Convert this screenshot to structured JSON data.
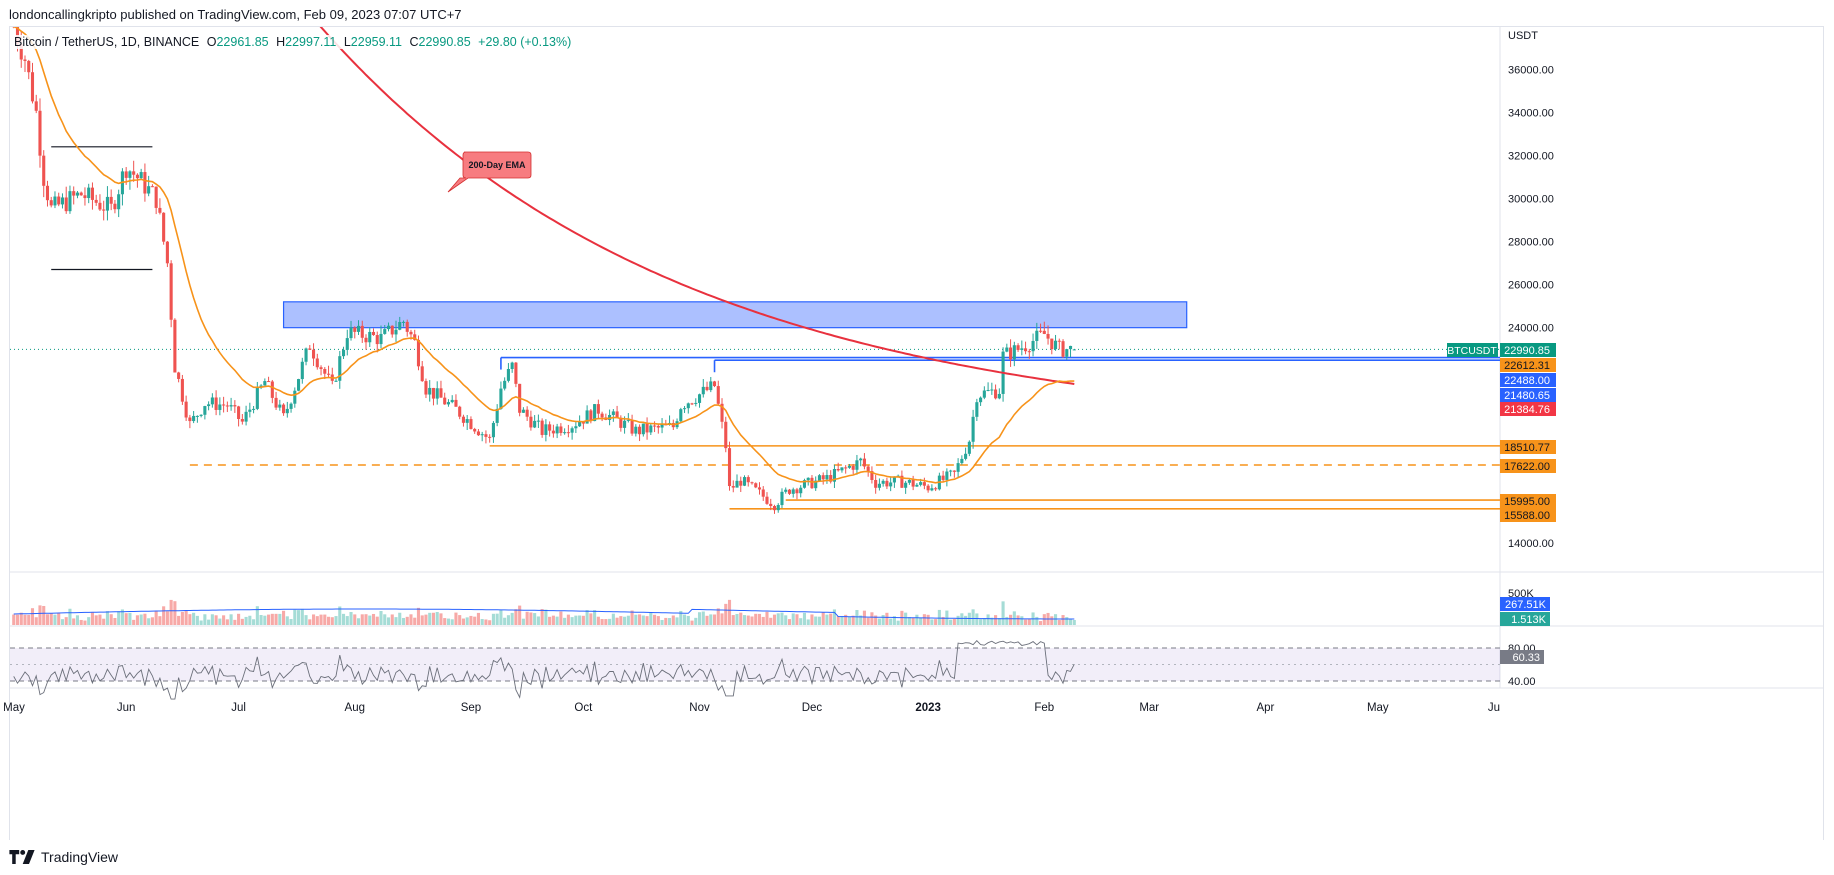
{
  "header": {
    "publisher": "londoncallingkripto published on TradingView.com, Feb 09, 2023 07:07 UTC+7"
  },
  "legend": {
    "symbol": "Bitcoin / TetherUS, 1D, BINANCE",
    "open_label": "O",
    "open": "22961.85",
    "high_label": "H",
    "high": "22997.11",
    "low_label": "L",
    "low": "22959.11",
    "close_label": "C",
    "close": "22990.85",
    "change": "+29.80 (+0.13%)"
  },
  "price_axis": {
    "currency": "USDT",
    "ticks": [
      "36000.00",
      "34000.00",
      "32000.00",
      "30000.00",
      "28000.00",
      "26000.00",
      "24000.00",
      "14000.00"
    ]
  },
  "time_axis": [
    "May",
    "Jun",
    "Jul",
    "Aug",
    "Sep",
    "Oct",
    "Nov",
    "Dec",
    "2023",
    "Feb",
    "Mar",
    "Apr",
    "May",
    "Ju"
  ],
  "price_labels": [
    {
      "text": "BTCUSDT",
      "color": "#089981"
    },
    {
      "text": "22990.85",
      "color": "#089981"
    },
    {
      "text": "22612.31",
      "color": "#f7931a"
    },
    {
      "text": "22488.00",
      "color": "#2962ff"
    },
    {
      "text": "21480.65",
      "color": "#2962ff"
    },
    {
      "text": "21384.76",
      "color": "#f23645"
    },
    {
      "text": "18510.77",
      "color": "#f7931a"
    },
    {
      "text": "17622.00",
      "color": "#f7931a"
    },
    {
      "text": "15995.00",
      "color": "#f7931a"
    },
    {
      "text": "15588.00",
      "color": "#f7931a"
    }
  ],
  "annotation": {
    "text": "200-Day EMA",
    "color": "#f77c80"
  },
  "volume_axis": {
    "tick": "500K",
    "labels": [
      {
        "text": "267.51K",
        "color": "#2962ff"
      },
      {
        "text": "1.513K",
        "color": "#26a69a"
      }
    ]
  },
  "rsi_axis": {
    "ticks": [
      "80.00",
      "40.00"
    ],
    "label": {
      "text": "60.33",
      "color": "#787b86"
    }
  },
  "footer": {
    "brand": "TradingView"
  },
  "colors": {
    "up": "#26a69a",
    "down": "#ef5350",
    "ema200": "#e8313e",
    "ma20": "#f7931a",
    "zone_fill": "#9db5ff",
    "zone_border": "#2962ff",
    "support": "#f7931a",
    "resistance": "#2962ff",
    "range": "#131722"
  },
  "chart_data": {
    "type": "candlestick",
    "symbol": "BTCUSDT",
    "timeframe": "1D",
    "ylim": [
      13000,
      37500
    ],
    "x_range": [
      "2022-05-01",
      "2023-06-01"
    ],
    "key_levels": [
      {
        "name": "supply-zone",
        "low": 24000,
        "high": 25200,
        "from": "2022-07-13",
        "to": "2023-03-11"
      },
      {
        "name": "range-top",
        "value": 32400,
        "from": "2022-05-12",
        "to": "2022-06-08"
      },
      {
        "name": "range-bottom",
        "value": 26700,
        "from": "2022-05-12",
        "to": "2022-06-08"
      },
      {
        "name": "resistance",
        "value": 22612.31,
        "from": "2022-09-09",
        "to": "2023-03-11"
      },
      {
        "name": "resistance",
        "value": 22488.0,
        "from": "2022-11-05",
        "to": "2023-03-11"
      },
      {
        "name": "support",
        "value": 18510.77,
        "from": "2022-09-06",
        "to": "2023-03-11"
      },
      {
        "name": "support-dashed",
        "value": 17622.0,
        "from": "2022-06-18",
        "to": "2023-03-11"
      },
      {
        "name": "support",
        "value": 15995.0,
        "from": "2022-11-24",
        "to": "2023-03-11"
      },
      {
        "name": "support",
        "value": 15588.0,
        "from": "2022-11-09",
        "to": "2023-03-11"
      }
    ],
    "ema200_end": 21384.76,
    "ma20_end": 21480.65,
    "last_close": 22990.85,
    "rsi_last": 60.33,
    "volume_ma_last": "267.51K",
    "price_path": [
      [
        "2022-05-01",
        38500
      ],
      [
        "2022-05-05",
        36500
      ],
      [
        "2022-05-08",
        34000
      ],
      [
        "2022-05-10",
        31000
      ],
      [
        "2022-05-12",
        29500
      ],
      [
        "2022-05-20",
        30200
      ],
      [
        "2022-05-28",
        29500
      ],
      [
        "2022-06-01",
        31500
      ],
      [
        "2022-06-05",
        30800
      ],
      [
        "2022-06-09",
        30000
      ],
      [
        "2022-06-12",
        27000
      ],
      [
        "2022-06-14",
        22200
      ],
      [
        "2022-06-18",
        19500
      ],
      [
        "2022-06-22",
        20500
      ],
      [
        "2022-06-28",
        20400
      ],
      [
        "2022-07-02",
        19600
      ],
      [
        "2022-07-08",
        21500
      ],
      [
        "2022-07-13",
        19800
      ],
      [
        "2022-07-20",
        23200
      ],
      [
        "2022-07-26",
        21200
      ],
      [
        "2022-07-30",
        23800
      ],
      [
        "2022-08-08",
        23500
      ],
      [
        "2022-08-14",
        24300
      ],
      [
        "2022-08-17",
        23300
      ],
      [
        "2022-08-20",
        21200
      ],
      [
        "2022-08-28",
        20200
      ],
      [
        "2022-09-06",
        18800
      ],
      [
        "2022-09-09",
        21200
      ],
      [
        "2022-09-12",
        22200
      ],
      [
        "2022-09-14",
        20200
      ],
      [
        "2022-09-20",
        19200
      ],
      [
        "2022-09-28",
        19500
      ],
      [
        "2022-10-05",
        20200
      ],
      [
        "2022-10-15",
        19200
      ],
      [
        "2022-10-25",
        19400
      ],
      [
        "2022-10-27",
        20400
      ],
      [
        "2022-11-05",
        21300
      ],
      [
        "2022-11-08",
        18500
      ],
      [
        "2022-11-09",
        16500
      ],
      [
        "2022-11-12",
        16900
      ],
      [
        "2022-11-21",
        15800
      ],
      [
        "2022-11-25",
        16500
      ],
      [
        "2022-12-05",
        17000
      ],
      [
        "2022-12-14",
        17800
      ],
      [
        "2022-12-18",
        16800
      ],
      [
        "2022-12-25",
        16850
      ],
      [
        "2023-01-01",
        16600
      ],
      [
        "2023-01-08",
        17200
      ],
      [
        "2023-01-12",
        18800
      ],
      [
        "2023-01-14",
        20900
      ],
      [
        "2023-01-20",
        21100
      ],
      [
        "2023-01-21",
        22700
      ],
      [
        "2023-01-25",
        23000
      ],
      [
        "2023-02-01",
        23700
      ],
      [
        "2023-02-05",
        23000
      ],
      [
        "2023-02-09",
        22990.85
      ]
    ]
  }
}
